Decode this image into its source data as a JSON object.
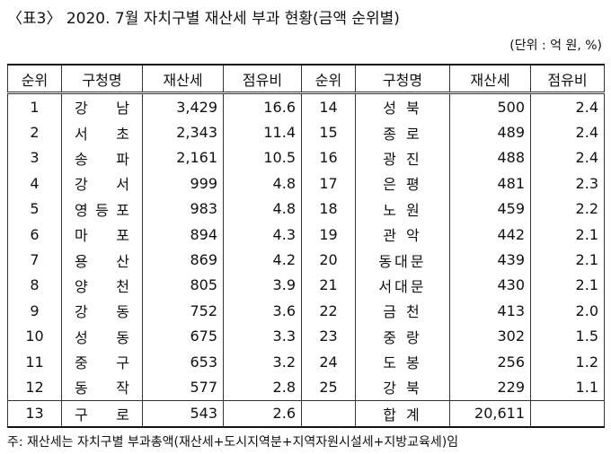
{
  "title": "〈표3〉 2020. 7월 자치구별 재산세 부과 현황(금액 순위별)",
  "unit": "(단위 : 억 원, %)",
  "headers": [
    "순위",
    "구청명",
    "재산세",
    "점유비",
    "순위",
    "구청명",
    "재산세",
    "점유비"
  ],
  "left_rows": [
    [
      "1",
      "강 남",
      "3,429",
      "16.6"
    ],
    [
      "2",
      "서 초",
      "2,343",
      "11.4"
    ],
    [
      "3",
      "송 파",
      "2,161",
      "10.5"
    ],
    [
      "4",
      "강 서",
      "999",
      "4.8"
    ],
    [
      "5",
      "영 등 포",
      "983",
      "4.8"
    ],
    [
      "6",
      "마 포",
      "894",
      "4.3"
    ],
    [
      "7",
      "용 산",
      "869",
      "4.2"
    ],
    [
      "8",
      "양 천",
      "805",
      "3.9"
    ],
    [
      "9",
      "강 동",
      "752",
      "3.6"
    ],
    [
      "10",
      "성 동",
      "675",
      "3.3"
    ],
    [
      "11",
      "중 구",
      "653",
      "3.2"
    ],
    [
      "12",
      "동 작",
      "577",
      "2.8"
    ],
    [
      "13",
      "구 로",
      "543",
      "2.6"
    ]
  ],
  "right_rows": [
    [
      "14",
      "성 북",
      "500",
      "2.4"
    ],
    [
      "15",
      "종 로",
      "489",
      "2.4"
    ],
    [
      "16",
      "광 진",
      "488",
      "2.4"
    ],
    [
      "17",
      "은 평",
      "481",
      "2.3"
    ],
    [
      "18",
      "노 원",
      "459",
      "2.2"
    ],
    [
      "19",
      "관 악",
      "442",
      "2.1"
    ],
    [
      "20",
      "동대문",
      "439",
      "2.1"
    ],
    [
      "21",
      "서대문",
      "430",
      "2.1"
    ],
    [
      "22",
      "금 천",
      "413",
      "2.0"
    ],
    [
      "23",
      "중 랑",
      "302",
      "1.5"
    ],
    [
      "24",
      "도 봉",
      "256",
      "1.2"
    ],
    [
      "25",
      "강 북",
      "229",
      "1.1"
    ]
  ],
  "total": {
    "label": "합 계",
    "value": "20,611"
  },
  "note": "주: 재산세는 자치구별 부과총액(재산세+도시지역분+지역자원시설세+지방교육세)임"
}
